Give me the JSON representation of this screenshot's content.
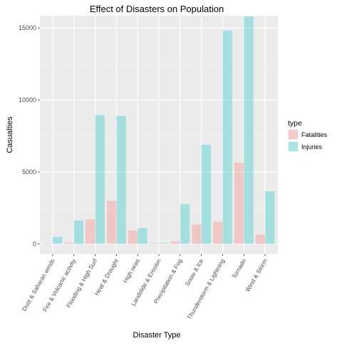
{
  "chart_data": {
    "type": "bar",
    "title": "Effect of Disasters on Population",
    "xlabel": "Disaster Type",
    "ylabel": "Casualties",
    "ylim": [
      -700,
      15850
    ],
    "yticks": [
      0,
      5000,
      10000,
      15000
    ],
    "grid": true,
    "legend": {
      "title": "type",
      "position": "right"
    },
    "categories": [
      "Dust & Saharan winds",
      "Fire & Volcanic activity",
      "Flooding & High Surf",
      "Heat & Drought",
      "High seas",
      "Landslide & Erosion",
      "Precipitation & Fog",
      "Snow & Ice",
      "Thunderstorm & Lightning",
      "Tornado",
      "Wind & Storm"
    ],
    "series": [
      {
        "name": "Fatalities",
        "color": "#f8766d",
        "values": [
          30,
          90,
          1700,
          3000,
          920,
          45,
          180,
          1350,
          1550,
          5650,
          650
        ]
      },
      {
        "name": "Injuries",
        "color": "#00bfc4",
        "values": [
          470,
          1620,
          8950,
          8900,
          1100,
          60,
          2750,
          6880,
          14800,
          15800,
          3650
        ]
      }
    ]
  }
}
